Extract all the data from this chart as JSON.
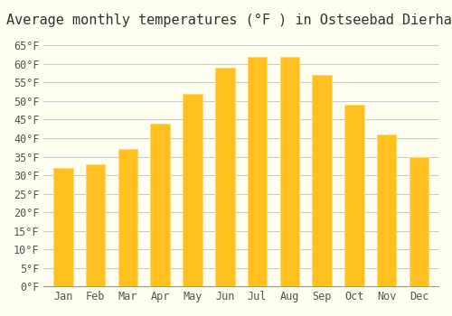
{
  "title": "Average monthly temperatures (°F ) in Ostseebad Dierhagen",
  "months": [
    "Jan",
    "Feb",
    "Mar",
    "Apr",
    "May",
    "Jun",
    "Jul",
    "Aug",
    "Sep",
    "Oct",
    "Nov",
    "Dec"
  ],
  "values": [
    32,
    33,
    37,
    44,
    52,
    59,
    62,
    62,
    57,
    49,
    41,
    35
  ],
  "bar_color_face": "#FFC020",
  "bar_color_edge": "#FFD878",
  "background_color": "#FFFFF2",
  "grid_color": "#CCCCCC",
  "ylim": [
    0,
    68
  ],
  "yticks": [
    0,
    5,
    10,
    15,
    20,
    25,
    30,
    35,
    40,
    45,
    50,
    55,
    60,
    65
  ],
  "ytick_labels": [
    "0°F",
    "5°F",
    "10°F",
    "15°F",
    "20°F",
    "25°F",
    "30°F",
    "35°F",
    "40°F",
    "45°F",
    "50°F",
    "55°F",
    "60°F",
    "65°F"
  ],
  "title_fontsize": 11,
  "tick_fontsize": 8.5,
  "tick_font": "monospace"
}
